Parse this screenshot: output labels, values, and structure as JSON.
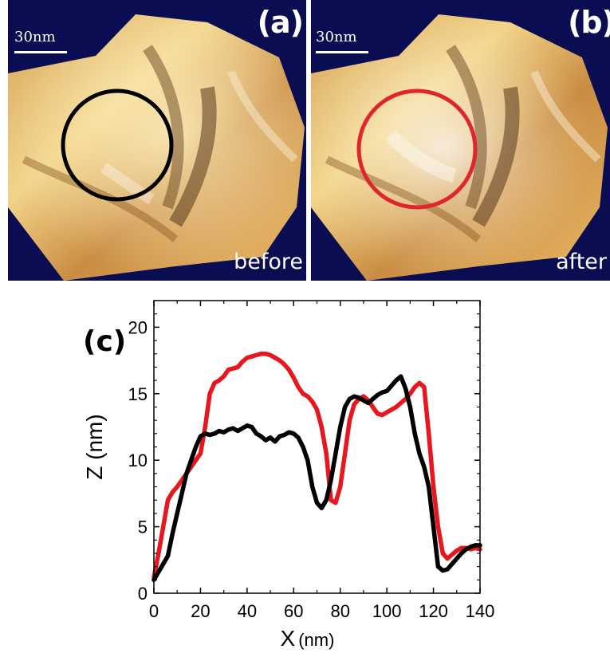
{
  "panels": {
    "a": {
      "label": "(a)",
      "scale": "30nm",
      "caption": "before",
      "circle_color": "#000000"
    },
    "b": {
      "label": "(b)",
      "scale": "30nm",
      "caption": "after",
      "circle_color": "#e0262c"
    }
  },
  "chart_data": {
    "type": "line",
    "panel_label": "(c)",
    "xlabel": "X",
    "xlabel_unit": "(nm)",
    "ylabel": "Z (nm)",
    "xlim": [
      0,
      140
    ],
    "ylim": [
      0,
      22
    ],
    "xticks": [
      0,
      20,
      40,
      60,
      80,
      100,
      120,
      140
    ],
    "yticks": [
      0,
      5,
      10,
      15,
      20
    ],
    "grid": false,
    "series": [
      {
        "color": "#e8171d",
        "x": [
          0,
          2,
          4,
          6,
          8,
          10,
          12,
          14,
          16,
          18,
          20,
          22,
          24,
          26,
          28,
          30,
          32,
          34,
          36,
          38,
          40,
          42,
          44,
          46,
          48,
          50,
          52,
          54,
          56,
          58,
          60,
          62,
          64,
          66,
          68,
          70,
          72,
          74,
          76,
          78,
          80,
          82,
          84,
          86,
          88,
          90,
          92,
          94,
          96,
          98,
          100,
          102,
          104,
          106,
          108,
          110,
          112,
          114,
          116,
          118,
          120,
          122,
          124,
          126,
          128,
          130,
          132,
          134,
          136,
          138,
          140
        ],
        "y": [
          1.2,
          3.0,
          5.0,
          7.0,
          7.6,
          8.0,
          8.5,
          9.0,
          9.5,
          10.0,
          10.5,
          12.5,
          15.0,
          15.8,
          16.0,
          16.3,
          16.8,
          16.9,
          17.0,
          17.4,
          17.7,
          17.8,
          17.9,
          18.0,
          18.0,
          17.9,
          17.7,
          17.5,
          17.2,
          16.8,
          16.2,
          15.5,
          15.0,
          14.8,
          14.4,
          13.8,
          12.5,
          10.5,
          7.0,
          6.8,
          8.0,
          10.5,
          13.0,
          14.2,
          14.6,
          14.8,
          14.5,
          14.0,
          13.5,
          13.4,
          13.6,
          13.8,
          14.0,
          14.3,
          14.6,
          15.0,
          15.5,
          15.8,
          15.5,
          12.0,
          8.0,
          5.0,
          3.0,
          2.6,
          2.9,
          3.2,
          3.4,
          3.4,
          3.3,
          3.4,
          3.3
        ]
      },
      {
        "color": "#000000",
        "x": [
          0,
          2,
          4,
          6,
          8,
          10,
          12,
          14,
          16,
          18,
          20,
          22,
          24,
          26,
          28,
          30,
          32,
          34,
          36,
          38,
          40,
          42,
          44,
          46,
          48,
          50,
          52,
          54,
          56,
          58,
          60,
          62,
          64,
          66,
          68,
          70,
          72,
          74,
          76,
          78,
          80,
          82,
          84,
          86,
          88,
          90,
          92,
          94,
          96,
          98,
          100,
          102,
          104,
          106,
          108,
          110,
          112,
          114,
          116,
          118,
          120,
          122,
          124,
          126,
          128,
          130,
          132,
          134,
          136,
          138,
          140
        ],
        "y": [
          1.0,
          1.6,
          2.2,
          2.8,
          4.5,
          6.0,
          7.5,
          9.0,
          10.0,
          11.0,
          11.8,
          12.0,
          11.9,
          12.0,
          12.2,
          12.1,
          12.3,
          12.4,
          12.2,
          12.4,
          12.6,
          12.5,
          12.0,
          11.8,
          11.5,
          11.7,
          11.4,
          11.8,
          11.9,
          12.1,
          12.0,
          11.7,
          11.0,
          10.0,
          8.0,
          6.8,
          6.4,
          7.0,
          8.5,
          10.5,
          12.5,
          14.0,
          14.6,
          14.8,
          14.7,
          14.5,
          14.3,
          14.6,
          14.9,
          15.1,
          15.2,
          15.6,
          16.0,
          16.3,
          15.4,
          14.0,
          12.0,
          10.5,
          9.5,
          8.0,
          5.0,
          2.0,
          1.7,
          1.8,
          2.2,
          2.6,
          3.0,
          3.3,
          3.5,
          3.6,
          3.6
        ]
      }
    ]
  }
}
